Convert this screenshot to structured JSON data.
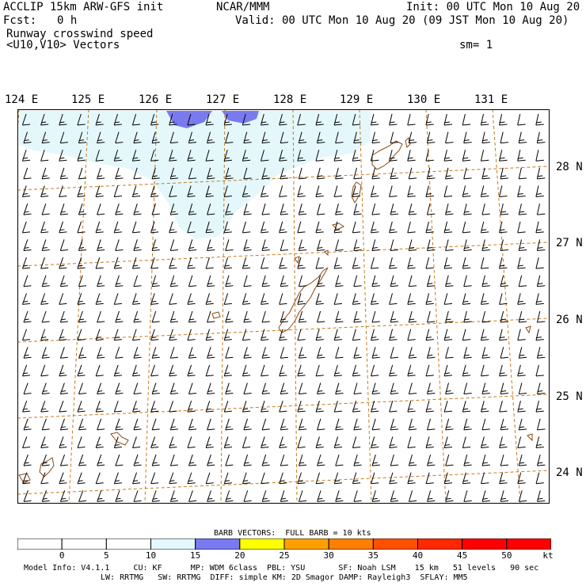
{
  "header": {
    "title": "ACCLIP 15km ARW-GFS init",
    "center": "NCAR/MMM",
    "init": "Init: 00 UTC Mon 10 Aug 20",
    "fcst_label": "Fcst:",
    "fcst_value": "0 h",
    "valid": "Valid: 00 UTC Mon 10 Aug 20 (09 JST Mon 10 Aug 20)",
    "field": "Runway crosswind speed",
    "vectors": "<U10,V10> Vectors",
    "smoothing": "sm= 1"
  },
  "map": {
    "lon_labels": [
      "124 E",
      "125 E",
      "126 E",
      "127 E",
      "128 E",
      "129 E",
      "130 E",
      "131 E"
    ],
    "lat_labels": [
      "28 N",
      "27 N",
      "26 N",
      "25 N",
      "24 N"
    ],
    "grid_color": "#c87a1e",
    "coast_color": "#8b4a14",
    "light_fill": "#e4f8fc",
    "blue_fill": "#7a7af0",
    "barb_color": "#000000"
  },
  "colorbar": {
    "caption": "BARB VECTORS:  FULL BARB = 10 kts",
    "ticks": [
      "0",
      "5",
      "10",
      "15",
      "20",
      "25",
      "30",
      "35",
      "40",
      "45",
      "50"
    ],
    "unit": "kt",
    "colors": [
      "#ffffff",
      "#ffffff",
      "#ffffff",
      "#e4f8fc",
      "#7a7af0",
      "#ffff00",
      "#ffa000",
      "#ff8000",
      "#ff5000",
      "#ff2800",
      "#ff0000",
      "#ff0000"
    ]
  },
  "footer": {
    "line1": "Model Info: V4.1.1     CU: KF      MP: WDM 6class  PBL: YSU       SF: Noah LSM    15 km   51 levels   90 sec",
    "line2": "LW: RRTMG   SW: RRTMG  DIFF: simple KM: 2D Smagor DAMP: Rayleigh3  SFLAY: MM5"
  }
}
